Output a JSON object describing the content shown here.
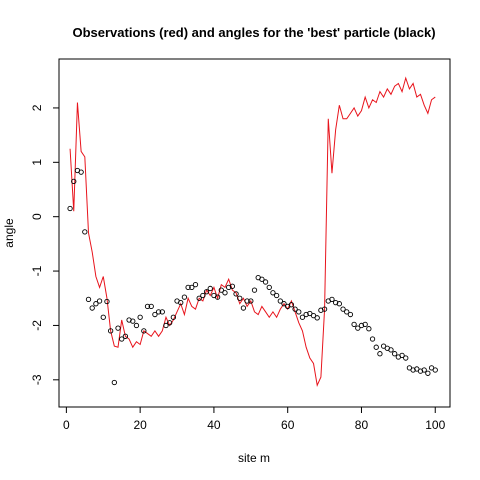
{
  "chart_data": {
    "type": "scatter",
    "title": "Observations (red) and angles for the 'best' particle (black)",
    "xlabel": "site m",
    "ylabel": "angle",
    "xlim": [
      -2,
      104
    ],
    "ylim": [
      -3.5,
      2.9
    ],
    "x_ticks": [
      0,
      20,
      40,
      60,
      80,
      100
    ],
    "x_tick_labels": [
      "0",
      "20",
      "40",
      "60",
      "80",
      "100"
    ],
    "y_ticks": [
      -3,
      -2,
      -1,
      0,
      1,
      2
    ],
    "y_tick_labels": [
      "-3",
      "-2",
      "-1",
      "0",
      "1",
      "2"
    ],
    "grid": false,
    "legend": "none",
    "colors": {
      "line": "#e8141c",
      "points": "#000000"
    },
    "series": [
      {
        "kind": "line",
        "color": "#e8141c",
        "x": [
          1,
          2,
          3,
          4,
          5,
          6,
          7,
          8,
          9,
          10,
          11,
          12,
          13,
          14,
          15,
          16,
          17,
          18,
          19,
          20,
          21,
          22,
          23,
          24,
          25,
          26,
          27,
          28,
          29,
          30,
          31,
          32,
          33,
          34,
          35,
          36,
          37,
          38,
          39,
          40,
          41,
          42,
          43,
          44,
          45,
          46,
          47,
          48,
          49,
          50,
          51,
          52,
          53,
          54,
          55,
          56,
          57,
          58,
          59,
          60,
          61,
          62,
          63,
          64,
          65,
          66,
          67,
          68,
          69,
          70,
          71,
          72,
          73,
          74,
          75,
          76,
          77,
          78,
          79,
          80,
          81,
          82,
          83,
          84,
          85,
          86,
          87,
          88,
          89,
          90,
          91,
          92,
          93,
          94,
          95,
          96,
          97,
          98,
          99,
          100
        ],
        "y": [
          1.25,
          0.1,
          2.1,
          1.2,
          1.1,
          -0.3,
          -0.65,
          -1.1,
          -1.3,
          -1.1,
          -1.5,
          -2.1,
          -2.38,
          -2.4,
          -1.9,
          -2.2,
          -2.25,
          -2.4,
          -2.3,
          -2.35,
          -2.1,
          -2.15,
          -2.2,
          -2.1,
          -2.2,
          -2.1,
          -1.85,
          -2.0,
          -1.9,
          -1.75,
          -1.6,
          -1.8,
          -1.5,
          -1.65,
          -1.7,
          -1.5,
          -1.55,
          -1.35,
          -1.45,
          -1.3,
          -1.5,
          -1.25,
          -1.3,
          -1.15,
          -1.35,
          -1.4,
          -1.6,
          -1.5,
          -1.65,
          -1.55,
          -1.75,
          -1.8,
          -1.65,
          -1.75,
          -1.85,
          -1.75,
          -1.85,
          -1.7,
          -1.6,
          -1.7,
          -1.55,
          -1.75,
          -1.95,
          -2.1,
          -2.4,
          -2.6,
          -2.7,
          -3.1,
          -2.95,
          -1.7,
          1.8,
          0.8,
          1.6,
          2.05,
          1.8,
          1.8,
          1.9,
          2.0,
          1.85,
          1.95,
          2.2,
          2.0,
          2.15,
          2.1,
          2.3,
          2.2,
          2.35,
          2.25,
          2.4,
          2.45,
          2.3,
          2.55,
          2.35,
          2.45,
          2.2,
          2.25,
          2.05,
          1.9,
          2.15,
          2.2
        ]
      },
      {
        "kind": "points",
        "color": "#000000",
        "x": [
          1,
          2,
          3,
          4,
          5,
          6,
          7,
          8,
          9,
          10,
          11,
          12,
          13,
          14,
          15,
          16,
          17,
          18,
          19,
          20,
          21,
          22,
          23,
          24,
          25,
          26,
          27,
          28,
          29,
          30,
          31,
          32,
          33,
          34,
          35,
          36,
          37,
          38,
          39,
          40,
          41,
          42,
          43,
          44,
          45,
          46,
          47,
          48,
          49,
          50,
          51,
          52,
          53,
          54,
          55,
          56,
          57,
          58,
          59,
          60,
          61,
          62,
          63,
          64,
          65,
          66,
          67,
          68,
          69,
          70,
          71,
          72,
          73,
          74,
          75,
          76,
          77,
          78,
          79,
          80,
          81,
          82,
          83,
          84,
          85,
          86,
          87,
          88,
          89,
          90,
          91,
          92,
          93,
          94,
          95,
          96,
          97,
          98,
          99,
          100
        ],
        "y": [
          0.15,
          0.65,
          0.85,
          0.82,
          -0.28,
          -1.52,
          -1.68,
          -1.6,
          -1.55,
          -1.85,
          -1.56,
          -2.1,
          -3.05,
          -2.05,
          -2.25,
          -2.2,
          -1.9,
          -1.92,
          -2.0,
          -1.85,
          -2.1,
          -1.65,
          -1.65,
          -1.8,
          -1.75,
          -1.75,
          -2.0,
          -1.95,
          -1.85,
          -1.55,
          -1.58,
          -1.48,
          -1.3,
          -1.3,
          -1.25,
          -1.5,
          -1.45,
          -1.38,
          -1.32,
          -1.45,
          -1.48,
          -1.35,
          -1.4,
          -1.3,
          -1.28,
          -1.42,
          -1.5,
          -1.68,
          -1.55,
          -1.55,
          -1.35,
          -1.12,
          -1.15,
          -1.2,
          -1.3,
          -1.4,
          -1.45,
          -1.55,
          -1.6,
          -1.65,
          -1.62,
          -1.7,
          -1.75,
          -1.85,
          -1.8,
          -1.78,
          -1.82,
          -1.86,
          -1.72,
          -1.7,
          -1.55,
          -1.52,
          -1.58,
          -1.6,
          -1.7,
          -1.75,
          -1.8,
          -1.98,
          -2.05,
          -2.0,
          -1.98,
          -2.06,
          -2.25,
          -2.4,
          -2.52,
          -2.38,
          -2.42,
          -2.45,
          -2.52,
          -2.58,
          -2.55,
          -2.6,
          -2.78,
          -2.82,
          -2.8,
          -2.84,
          -2.82,
          -2.88,
          -2.78,
          -2.82
        ]
      }
    ]
  }
}
